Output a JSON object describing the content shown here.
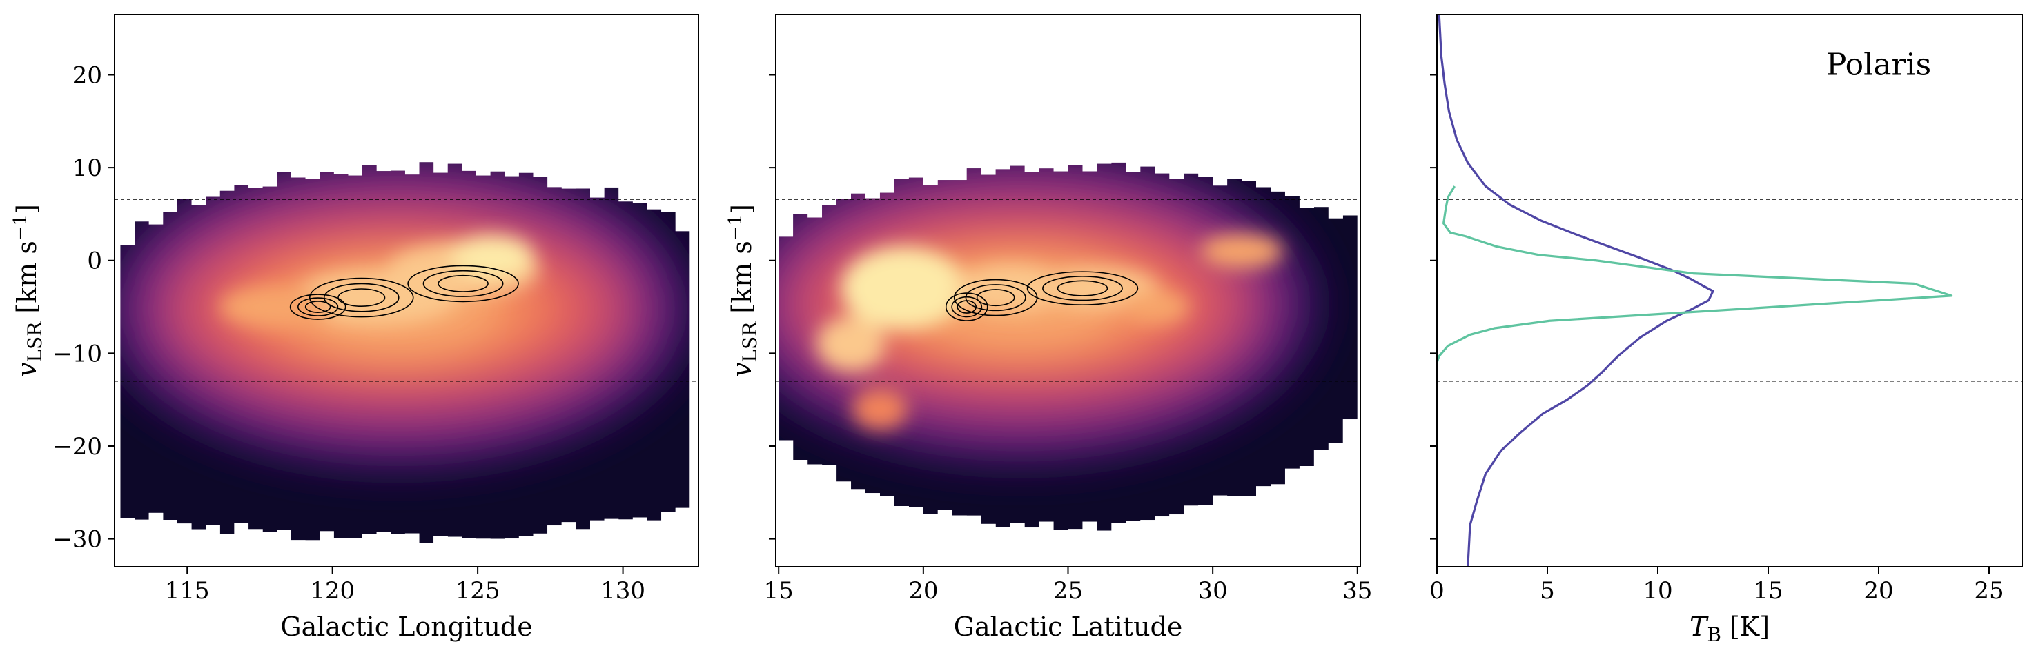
{
  "figure": {
    "annotation": "Polaris",
    "vline_levels": [
      6.6,
      -13.0
    ]
  },
  "colors": {
    "spectrum_broad": "#4f46a5",
    "spectrum_narrow": "#5fc4a0",
    "contour_lines": "#000000",
    "colormap": [
      "#0d0829",
      "#2b1157",
      "#511a6e",
      "#77267c",
      "#9d3579",
      "#c44a6d",
      "#e2605d",
      "#f2835a",
      "#f7a56a",
      "#fbc88c",
      "#fdeaa8"
    ]
  },
  "chart_data": [
    {
      "type": "heatmap",
      "panel": "left",
      "xlabel": "Galactic Longitude",
      "ylabel_main": "v",
      "ylabel_sub": "LSR",
      "ylabel_units": "[km s",
      "ylabel_exp": "−1",
      "ylabel_close": "]",
      "xlim": [
        112.5,
        132.6
      ],
      "ylim": [
        -33,
        26.5
      ],
      "xticks": [
        115,
        120,
        125,
        130
      ],
      "yticks": [
        20,
        10,
        0,
        -10,
        -20,
        -30
      ],
      "ytick_labels": [
        "20",
        "10",
        "0",
        "−10",
        "−20",
        "−30"
      ],
      "region": {
        "x": [
          112.7,
          132.3
        ],
        "v_top_range": [
          1,
          10
        ],
        "v_bottom_range": [
          -26,
          -29
        ]
      },
      "peak": {
        "x": 121.5,
        "v": -4.0
      },
      "hlines": [
        6.6,
        -13.0
      ]
    },
    {
      "type": "heatmap",
      "panel": "middle",
      "xlabel": "Galactic Latitude",
      "ylabel_main": "v",
      "ylabel_sub": "LSR",
      "ylabel_units": "[km s",
      "ylabel_exp": "−1",
      "ylabel_close": "]",
      "xlim": [
        14.9,
        35.1
      ],
      "ylim": [
        -33,
        26.5
      ],
      "xticks": [
        15,
        20,
        25,
        30,
        35
      ],
      "yticks": [
        20,
        10,
        0,
        -10,
        -20,
        -30
      ],
      "region": {
        "x": [
          15.0,
          35.0
        ],
        "v_top_range": [
          2,
          10
        ],
        "v_bottom_range": [
          -17,
          -28
        ]
      },
      "peak": {
        "x": 19.5,
        "v": -3.5
      },
      "hlines": [
        6.6,
        -13.0
      ]
    },
    {
      "type": "line",
      "panel": "right",
      "xlabel_main": "T",
      "xlabel_sub": "B",
      "xlabel_units": "[K]",
      "xlim": [
        0,
        26.5
      ],
      "ylim": [
        -33,
        26.5
      ],
      "xticks": [
        0,
        5,
        10,
        15,
        20,
        25
      ],
      "yticks": [
        20,
        10,
        0,
        -10,
        -20,
        -30
      ],
      "annotation": "Polaris",
      "hlines": [
        6.6,
        -13.0
      ],
      "series": [
        {
          "color": "#4f46a5",
          "x": [
            0.1,
            0.2,
            0.35,
            0.55,
            0.9,
            1.4,
            2.2,
            3.3,
            4.7,
            6.3,
            7.9,
            9.4,
            10.6,
            11.5,
            12.1,
            12.5,
            12.3,
            11.5,
            10.4,
            9.2,
            8.2,
            7.5,
            6.8,
            5.9,
            4.8,
            3.8,
            2.9,
            2.2,
            1.8,
            1.5,
            1.4
          ],
          "y": [
            26.5,
            22,
            19,
            16,
            13,
            10.5,
            8,
            6,
            4.3,
            2.8,
            1.4,
            0.1,
            -1.0,
            -2.0,
            -2.8,
            -3.3,
            -4.3,
            -5.3,
            -6.5,
            -8.3,
            -10.3,
            -12.0,
            -13.5,
            -15.0,
            -16.5,
            -18.5,
            -20.5,
            -23.0,
            -26.0,
            -28.5,
            -33.0
          ]
        },
        {
          "color": "#5fc4a0",
          "x": [
            0.8,
            0.5,
            0.4,
            0.3,
            0.6,
            1.3,
            2.7,
            4.6,
            7.2,
            11.6,
            21.6,
            23.3,
            14.0,
            5.1,
            2.6,
            1.5,
            0.5,
            0.1,
            0.0
          ],
          "y": [
            8.0,
            6.8,
            5.6,
            4.0,
            3.0,
            2.6,
            1.5,
            0.6,
            0.0,
            -1.4,
            -2.5,
            -3.8,
            -5.2,
            -6.5,
            -7.3,
            -8.0,
            -9.2,
            -10.3,
            -11.0
          ]
        }
      ]
    }
  ]
}
